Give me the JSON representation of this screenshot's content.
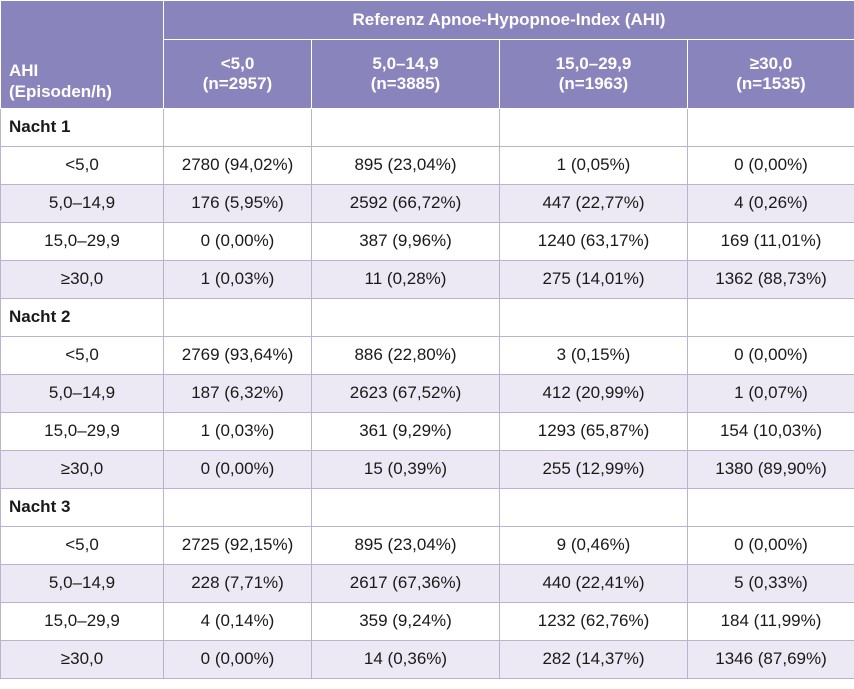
{
  "header": {
    "row_header_line1": "AHI",
    "row_header_line2": "(Episoden/h)",
    "group_title": "Referenz Apnoe-Hypopnoe-Index (AHI)",
    "columns": [
      {
        "label": "<5,0",
        "n": "(n=2957)"
      },
      {
        "label": "5,0–14,9",
        "n": "(n=3885)"
      },
      {
        "label": "15,0–29,9",
        "n": "(n=1963)"
      },
      {
        "label": "≥30,0",
        "n": "(n=1535)"
      }
    ]
  },
  "nights": [
    {
      "label": "Nacht 1",
      "rows": [
        {
          "ahi": "<5,0",
          "cells": [
            "2780 (94,02%)",
            "895 (23,04%)",
            "1 (0,05%)",
            "0 (0,00%)"
          ]
        },
        {
          "ahi": "5,0–14,9",
          "cells": [
            "176 (5,95%)",
            "2592 (66,72%)",
            "447 (22,77%)",
            "4 (0,26%)"
          ]
        },
        {
          "ahi": "15,0–29,9",
          "cells": [
            "0 (0,00%)",
            "387 (9,96%)",
            "1240 (63,17%)",
            "169 (11,01%)"
          ]
        },
        {
          "ahi": "≥30,0",
          "cells": [
            "1 (0,03%)",
            "11 (0,28%)",
            "275 (14,01%)",
            "1362 (88,73%)"
          ]
        }
      ]
    },
    {
      "label": "Nacht 2",
      "rows": [
        {
          "ahi": "<5,0",
          "cells": [
            "2769 (93,64%)",
            "886 (22,80%)",
            "3 (0,15%)",
            "0 (0,00%)"
          ]
        },
        {
          "ahi": "5,0–14,9",
          "cells": [
            "187 (6,32%)",
            "2623 (67,52%)",
            "412 (20,99%)",
            "1 (0,07%)"
          ]
        },
        {
          "ahi": "15,0–29,9",
          "cells": [
            "1 (0,03%)",
            "361 (9,29%)",
            "1293 (65,87%)",
            "154 (10,03%)"
          ]
        },
        {
          "ahi": "≥30,0",
          "cells": [
            "0 (0,00%)",
            "15 (0,39%)",
            "255 (12,99%)",
            "1380 (89,90%)"
          ]
        }
      ]
    },
    {
      "label": "Nacht 3",
      "rows": [
        {
          "ahi": "<5,0",
          "cells": [
            "2725 (92,15%)",
            "895 (23,04%)",
            "9 (0,46%)",
            "0 (0,00%)"
          ]
        },
        {
          "ahi": "5,0–14,9",
          "cells": [
            "228 (7,71%)",
            "2617 (67,36%)",
            "440 (22,41%)",
            "5 (0,33%)"
          ]
        },
        {
          "ahi": "15,0–29,9",
          "cells": [
            "4 (0,14%)",
            "359 (9,24%)",
            "1232 (62,76%)",
            "184 (11,99%)"
          ]
        },
        {
          "ahi": "≥30,0",
          "cells": [
            "0 (0,00%)",
            "14 (0,36%)",
            "282 (14,37%)",
            "1346 (87,69%)"
          ]
        }
      ]
    }
  ],
  "colors": {
    "header_bg": "#8a84bd",
    "header_text": "#ffffff",
    "alt_row_bg": "#ece9f4",
    "border": "#b9b3cf"
  }
}
